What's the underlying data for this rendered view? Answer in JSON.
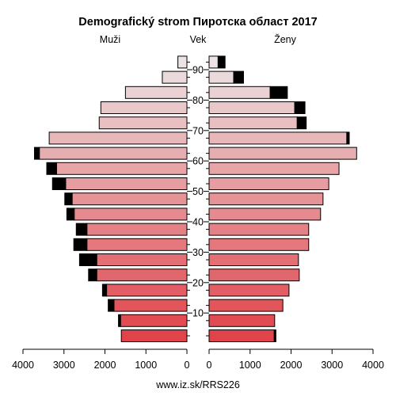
{
  "chart_data": {
    "type": "bar",
    "title": "Demografický strom Пиротска област 2017",
    "left_label": "Muži",
    "center_label": "Vek",
    "right_label": "Ženy",
    "source": "www.iz.sk/RRS226",
    "age_groups": [
      "0-4",
      "5-9",
      "10-14",
      "15-19",
      "20-24",
      "25-29",
      "30-34",
      "35-39",
      "40-44",
      "45-49",
      "50-54",
      "55-59",
      "60-64",
      "65-69",
      "70-74",
      "75-79",
      "80-84",
      "85-89",
      "90+"
    ],
    "age_ticks": [
      10,
      20,
      30,
      40,
      50,
      60,
      70,
      80,
      90
    ],
    "x_ticks": [
      4000,
      3000,
      2000,
      1000,
      0
    ],
    "xlim": [
      0,
      4000
    ],
    "series": [
      {
        "name": "Muži",
        "values": [
          1600,
          1620,
          1780,
          1960,
          2200,
          2200,
          2440,
          2440,
          2750,
          2800,
          2960,
          3180,
          3600,
          3360,
          2140,
          2100,
          1500,
          600,
          220
        ],
        "excess": [
          0,
          50,
          140,
          100,
          200,
          420,
          320,
          260,
          180,
          180,
          320,
          240,
          120,
          0,
          0,
          0,
          0,
          0,
          0
        ]
      },
      {
        "name": "Ženy",
        "values": [
          1590,
          1600,
          1800,
          1950,
          2200,
          2180,
          2430,
          2430,
          2720,
          2780,
          2920,
          3170,
          3600,
          3360,
          2150,
          2090,
          1490,
          600,
          220
        ],
        "excess": [
          40,
          0,
          0,
          0,
          0,
          0,
          0,
          0,
          0,
          0,
          0,
          0,
          0,
          60,
          220,
          250,
          420,
          240,
          170
        ]
      }
    ],
    "colors": {
      "young": "#e0434a",
      "old": "#ebe3e4",
      "excess": "#000000",
      "border": "#000000"
    }
  }
}
